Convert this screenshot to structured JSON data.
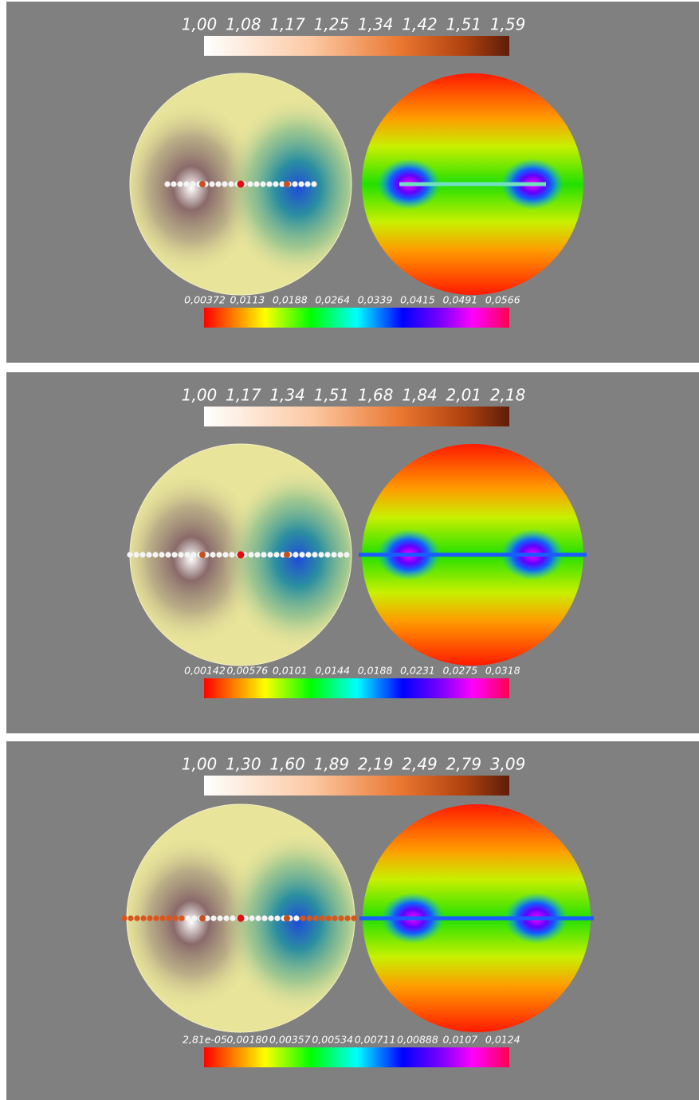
{
  "panels": [
    {
      "scale_top": [
        "1,00",
        "1,08",
        "1,17",
        "1,25",
        "1,34",
        "1,42",
        "1,51",
        "1,59"
      ],
      "scale_bottom": [
        "0,00372",
        "0,0113",
        "0,0188",
        "0,0264",
        "0,0339",
        "0,0415",
        "0,0491",
        "0,0566"
      ]
    },
    {
      "scale_top": [
        "1,00",
        "1,17",
        "1,34",
        "1,51",
        "1,68",
        "1,84",
        "2,01",
        "2,18"
      ],
      "scale_bottom": [
        "0,00142",
        "0,00576",
        "0,0101",
        "0,0144",
        "0,0188",
        "0,0231",
        "0,0275",
        "0,0318"
      ]
    },
    {
      "scale_top": [
        "1,00",
        "1,30",
        "1,60",
        "1,89",
        "2,19",
        "2,49",
        "2,79",
        "3,09"
      ],
      "scale_bottom": [
        "2,81e-05",
        "0,00180",
        "0,00357",
        "0,00534",
        "0,00711",
        "0,00888",
        "0,0107",
        "0,0124"
      ]
    }
  ]
}
